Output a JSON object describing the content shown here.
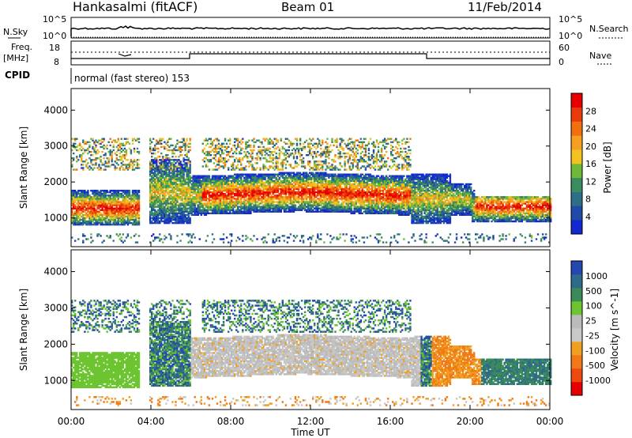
{
  "header": {
    "station": "Hankasalmi (fitACF)",
    "beam": "Beam 01",
    "date": "11/Feb/2014"
  },
  "nsky_panel": {
    "left_label": "N.Sky",
    "right_label": "N.Search",
    "left_ticks": [
      "10^5",
      "10^0"
    ],
    "right_ticks": [
      "10^5",
      "10^0"
    ]
  },
  "freq_panel": {
    "left_label_1": "Freq.",
    "left_label_2": "[MHz]",
    "left_ticks": [
      "18",
      "8"
    ],
    "right_ticks": [
      "60",
      "0"
    ],
    "right_label": "Nave"
  },
  "cpid_panel": {
    "label": "CPID",
    "text": "normal (fast stereo) 153"
  },
  "time_axis": {
    "label": "Time UT",
    "ticks": [
      "00:00",
      "04:00",
      "08:00",
      "12:00",
      "16:00",
      "20:00",
      "00:00"
    ]
  },
  "colors": {
    "power_scale": [
      "#1428d2",
      "#1f4aa8",
      "#2e6f87",
      "#3b8c5c",
      "#6fb83a",
      "#f2c220",
      "#f5a020",
      "#f07010",
      "#ea3a0a",
      "#e80000"
    ],
    "velocity_scale": [
      "#2448b0",
      "#2e6a8c",
      "#3a8a5a",
      "#6cc430",
      "#bbbbbb",
      "#c8c8c8",
      "#f0a020",
      "#f07818",
      "#ee4a10",
      "#e80000"
    ]
  },
  "chart_data": [
    {
      "type": "heatmap",
      "name": "power",
      "xlabel": "Time UT",
      "ylabel": "Slant Range [km]",
      "yticks": [
        1000,
        2000,
        3000,
        4000
      ],
      "ylim": [
        200,
        4600
      ],
      "xlim": [
        0,
        24
      ],
      "colorbar_label": "Power [dB]",
      "colorbar_ticks": [
        4,
        8,
        12,
        16,
        20,
        24,
        28
      ]
    },
    {
      "type": "heatmap",
      "name": "velocity",
      "xlabel": "Time UT",
      "ylabel": "Slant Range [km]",
      "yticks": [
        1000,
        2000,
        3000,
        4000
      ],
      "ylim": [
        200,
        4600
      ],
      "xlim": [
        0,
        24
      ],
      "colorbar_label": "Velocity [m s^-1]",
      "colorbar_ticks": [
        1000,
        500,
        100,
        25,
        -25,
        -100,
        -500,
        -1000
      ]
    }
  ]
}
